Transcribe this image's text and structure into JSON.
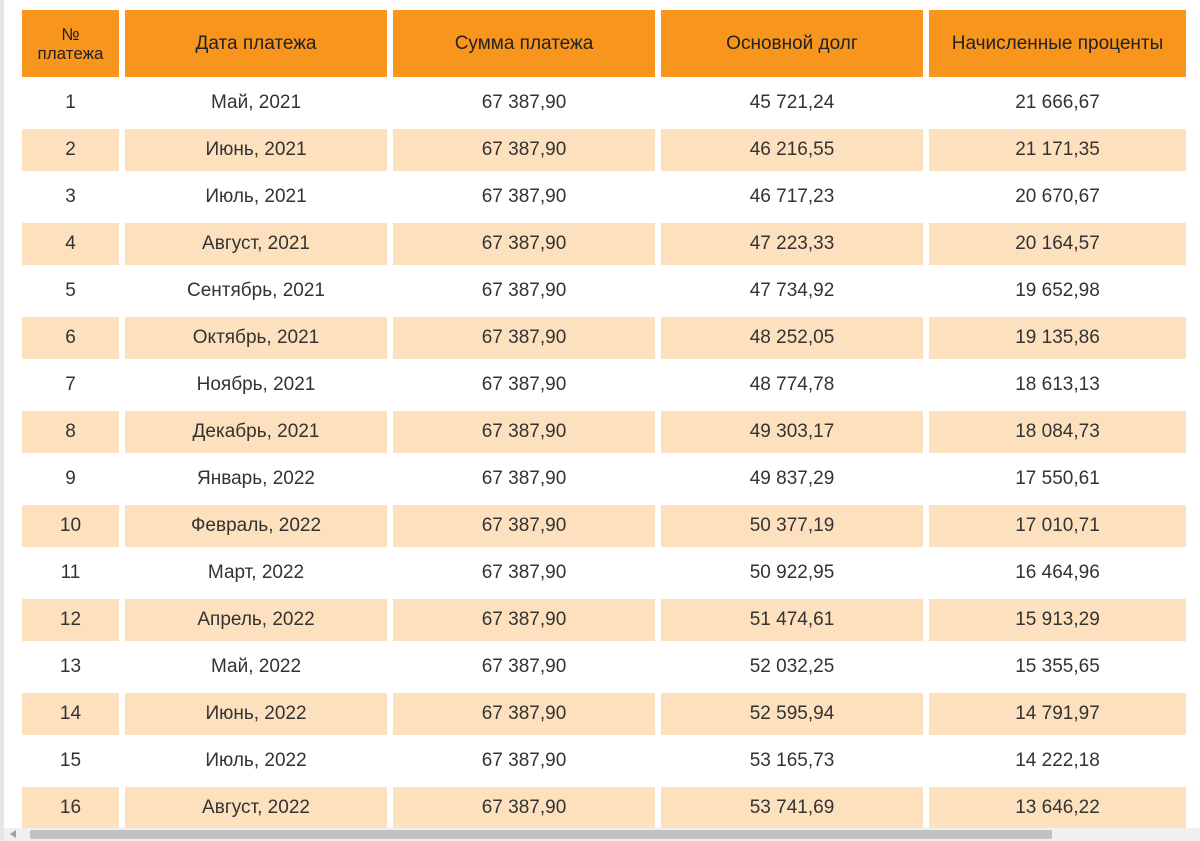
{
  "table": {
    "headers": {
      "num": "№ платежа",
      "date": "Дата платежа",
      "amount": "Сумма платежа",
      "principal": "Основной долг",
      "interest": "Начисленные проценты"
    },
    "rows": [
      {
        "num": "1",
        "date": "Май, 2021",
        "amount": "67 387,90",
        "principal": "45 721,24",
        "interest": "21 666,67"
      },
      {
        "num": "2",
        "date": "Июнь, 2021",
        "amount": "67 387,90",
        "principal": "46 216,55",
        "interest": "21 171,35"
      },
      {
        "num": "3",
        "date": "Июль, 2021",
        "amount": "67 387,90",
        "principal": "46 717,23",
        "interest": "20 670,67"
      },
      {
        "num": "4",
        "date": "Август, 2021",
        "amount": "67 387,90",
        "principal": "47 223,33",
        "interest": "20 164,57"
      },
      {
        "num": "5",
        "date": "Сентябрь, 2021",
        "amount": "67 387,90",
        "principal": "47 734,92",
        "interest": "19 652,98"
      },
      {
        "num": "6",
        "date": "Октябрь, 2021",
        "amount": "67 387,90",
        "principal": "48 252,05",
        "interest": "19 135,86"
      },
      {
        "num": "7",
        "date": "Ноябрь, 2021",
        "amount": "67 387,90",
        "principal": "48 774,78",
        "interest": "18 613,13"
      },
      {
        "num": "8",
        "date": "Декабрь, 2021",
        "amount": "67 387,90",
        "principal": "49 303,17",
        "interest": "18 084,73"
      },
      {
        "num": "9",
        "date": "Январь, 2022",
        "amount": "67 387,90",
        "principal": "49 837,29",
        "interest": "17 550,61"
      },
      {
        "num": "10",
        "date": "Февраль, 2022",
        "amount": "67 387,90",
        "principal": "50 377,19",
        "interest": "17 010,71"
      },
      {
        "num": "11",
        "date": "Март, 2022",
        "amount": "67 387,90",
        "principal": "50 922,95",
        "interest": "16 464,96"
      },
      {
        "num": "12",
        "date": "Апрель, 2022",
        "amount": "67 387,90",
        "principal": "51 474,61",
        "interest": "15 913,29"
      },
      {
        "num": "13",
        "date": "Май, 2022",
        "amount": "67 387,90",
        "principal": "52 032,25",
        "interest": "15 355,65"
      },
      {
        "num": "14",
        "date": "Июнь, 2022",
        "amount": "67 387,90",
        "principal": "52 595,94",
        "interest": "14 791,97"
      },
      {
        "num": "15",
        "date": "Июль, 2022",
        "amount": "67 387,90",
        "principal": "53 165,73",
        "interest": "14 222,18"
      },
      {
        "num": "16",
        "date": "Август, 2022",
        "amount": "67 387,90",
        "principal": "53 741,69",
        "interest": "13 646,22"
      }
    ]
  },
  "colors": {
    "header_bg": "#f7951d",
    "row_stripe": "#fde0bd",
    "row_plain": "#ffffff"
  },
  "scrollbar": {
    "left_arrow_icon": "chevron-left-icon"
  }
}
